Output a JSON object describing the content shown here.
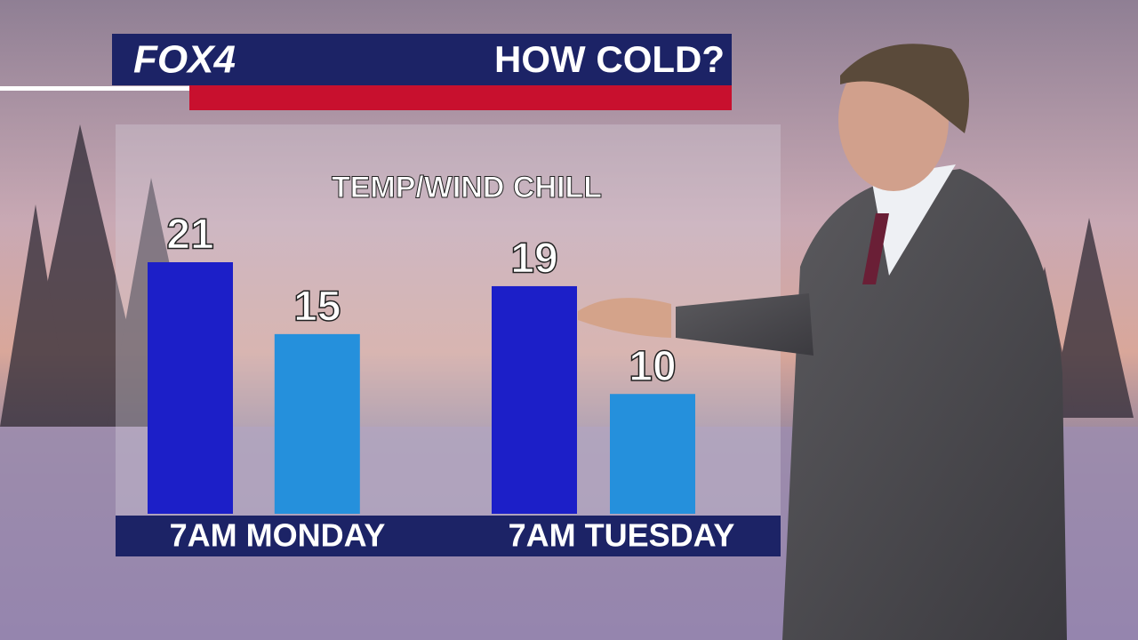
{
  "header": {
    "logo": "FOX4",
    "title": "HOW COLD?"
  },
  "chart_data": {
    "type": "bar",
    "title": "TEMP/WIND CHILL",
    "categories": [
      "7AM MONDAY",
      "7AM TUESDAY"
    ],
    "series": [
      {
        "color": "#1c1fc8",
        "values": [
          21,
          19
        ]
      },
      {
        "color": "#2590dc",
        "values": [
          15,
          10
        ]
      }
    ]
  }
}
